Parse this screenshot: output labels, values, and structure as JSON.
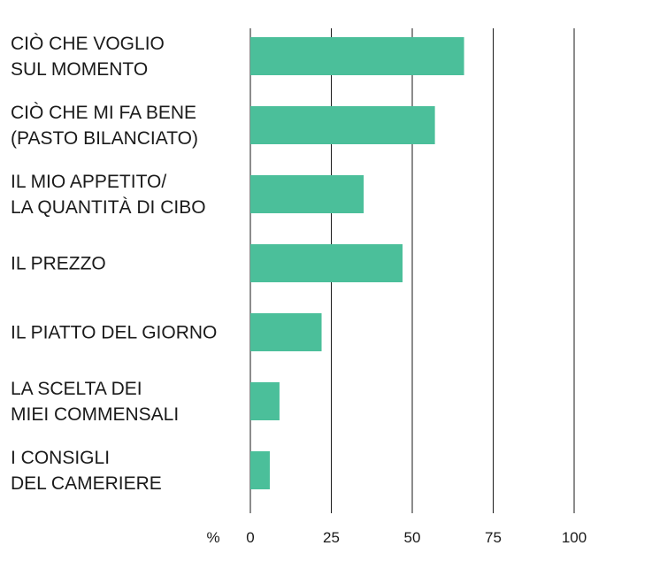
{
  "chart_data": {
    "type": "bar",
    "orientation": "horizontal",
    "categories": [
      [
        "CIÒ CHE VOGLIO",
        "SUL MOMENTO"
      ],
      [
        "CIÒ CHE MI FA BENE",
        "(PASTO BILANCIATO)"
      ],
      [
        "IL MIO APPETITO/",
        "LA QUANTITÀ DI CIBO"
      ],
      [
        "IL PREZZO"
      ],
      [
        "IL PIATTO DEL GIORNO"
      ],
      [
        "LA SCELTA DEI",
        "MIEI COMMENSALI"
      ],
      [
        "I CONSIGLI",
        "DEL CAMERIERE"
      ]
    ],
    "values": [
      66,
      57,
      35,
      47,
      22,
      9,
      6
    ],
    "xlim": [
      0,
      100
    ],
    "ticks": [
      0,
      25,
      50,
      75,
      100
    ],
    "tick_labels": [
      "0",
      "25",
      "50",
      "75",
      "100"
    ],
    "unit_label": "%",
    "grid": true,
    "bar_color": "#4bbf9a",
    "grid_color": "#1a1a1a",
    "text_color": "#1a1a1a"
  }
}
